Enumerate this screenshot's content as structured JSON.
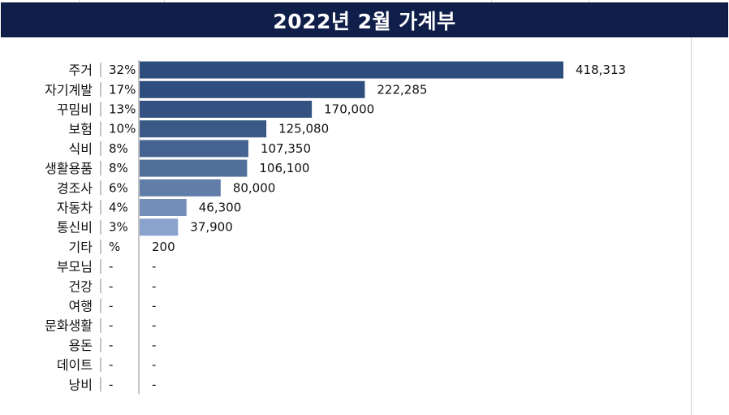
{
  "title": "2022년 2월 가계부",
  "colors": {
    "title_bg": "#0f1f4a",
    "bar_dark": "#2d4d7c",
    "bar_light": "#8aa3cc"
  },
  "chart_data": {
    "type": "bar",
    "orientation": "horizontal",
    "title": "2022년 2월 가계부",
    "categories": [
      "주거",
      "자기계발",
      "꾸밈비",
      "보험",
      "식비",
      "생활용품",
      "경조사",
      "자동차",
      "통신비",
      "기타",
      "부모님",
      "건강",
      "여행",
      "문화생활",
      "용돈",
      "데이트",
      "낭비"
    ],
    "percent_labels": [
      "32%",
      "17%",
      "13%",
      "10%",
      "8%",
      "8%",
      "6%",
      "4%",
      "3%",
      "%",
      "-",
      "-",
      "-",
      "-",
      "-",
      "-",
      "-"
    ],
    "value_labels": [
      "418,313",
      "222,285",
      "170,000",
      "125,080",
      "107,350",
      "106,100",
      "80,000",
      "46,300",
      "37,900",
      "200",
      "-",
      "-",
      "-",
      "-",
      "-",
      "-",
      "-"
    ],
    "values": [
      418313,
      222285,
      170000,
      125080,
      107350,
      106100,
      80000,
      46300,
      37900,
      200,
      0,
      0,
      0,
      0,
      0,
      0,
      0
    ],
    "xlim": [
      0,
      418313
    ],
    "grid": false,
    "legend": "none"
  }
}
